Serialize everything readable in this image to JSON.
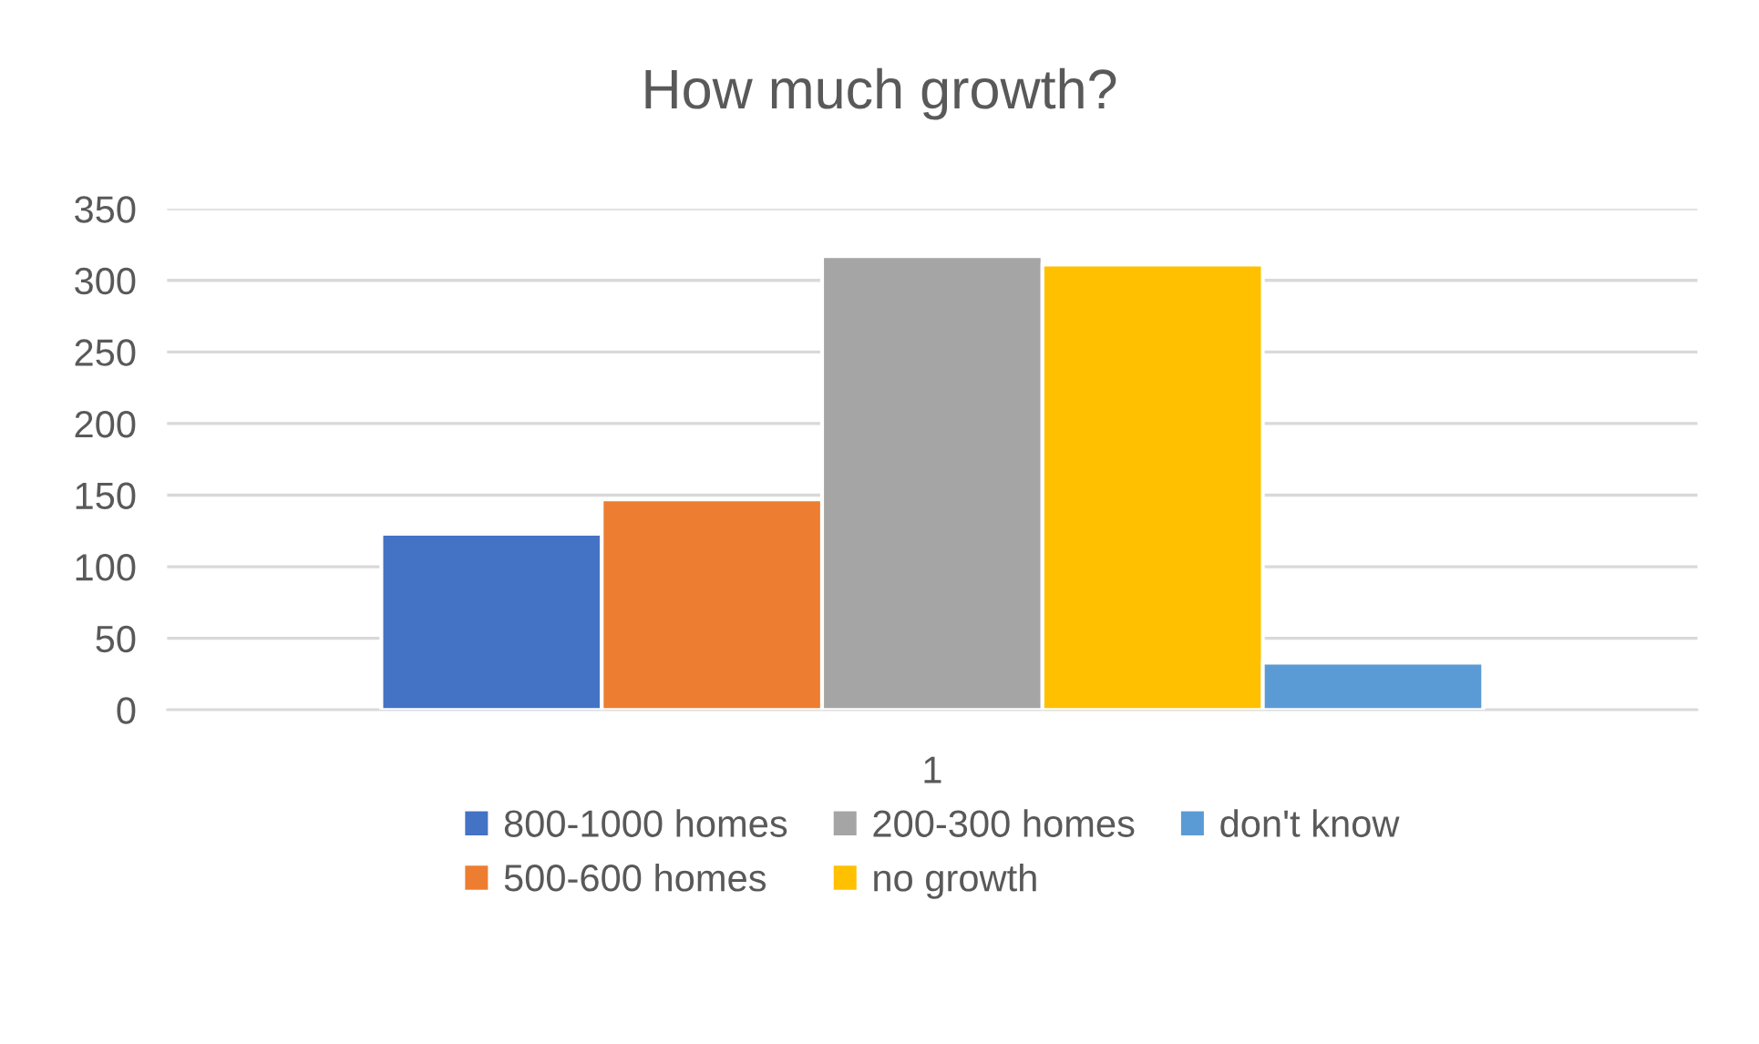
{
  "chart_data": {
    "type": "bar",
    "title": "How much growth?",
    "categories": [
      "1"
    ],
    "series": [
      {
        "name": "800-1000 homes",
        "color": "#4472c4",
        "values": [
          123
        ]
      },
      {
        "name": "500-600 homes",
        "color": "#ed7d31",
        "values": [
          147
        ]
      },
      {
        "name": "200-300 homes",
        "color": "#a5a5a5",
        "values": [
          317
        ]
      },
      {
        "name": "no growth",
        "color": "#ffc000",
        "values": [
          311
        ]
      },
      {
        "name": "don't know",
        "color": "#5b9bd5",
        "values": [
          33
        ]
      }
    ],
    "ylim": [
      0,
      350
    ],
    "yticks": [
      0,
      50,
      100,
      150,
      200,
      250,
      300,
      350
    ],
    "grid": "y",
    "legend": "bottom"
  }
}
